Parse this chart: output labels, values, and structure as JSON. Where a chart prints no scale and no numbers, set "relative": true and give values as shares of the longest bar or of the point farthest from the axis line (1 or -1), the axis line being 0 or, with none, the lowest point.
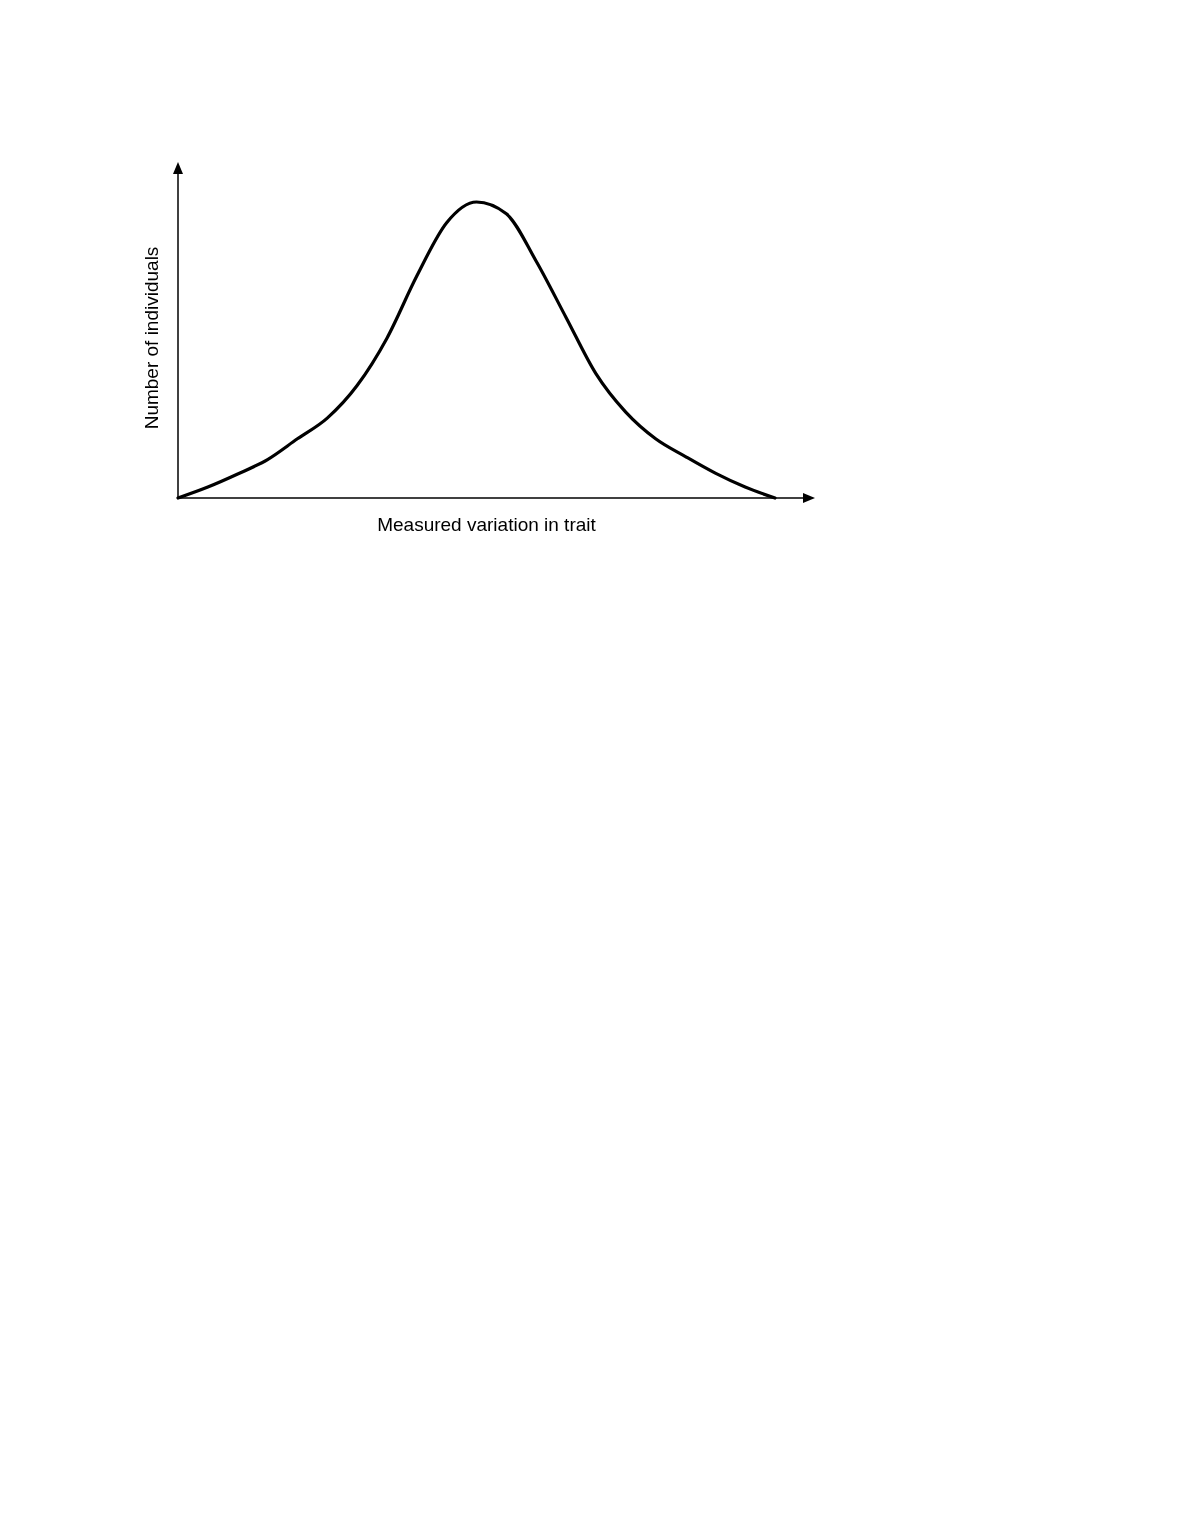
{
  "chart_data": {
    "type": "line",
    "relative": true,
    "xlabel": "Measured variation in trait",
    "ylabel": "Number of individuals",
    "color": "#000000",
    "categories": [
      null,
      null,
      null,
      null,
      null,
      null,
      null,
      null,
      null,
      null,
      null,
      null,
      null,
      null,
      null,
      null,
      null,
      null,
      null,
      null,
      null
    ],
    "values": [
      0,
      0.037,
      0.081,
      0.13,
      0.2,
      0.27,
      0.38,
      0.54,
      0.75,
      0.93,
      1,
      0.96,
      0.8,
      0.61,
      0.42,
      0.29,
      0.2,
      0.14,
      0.084,
      0.037,
      0
    ],
    "marker": "none",
    "line_style": "solid"
  }
}
